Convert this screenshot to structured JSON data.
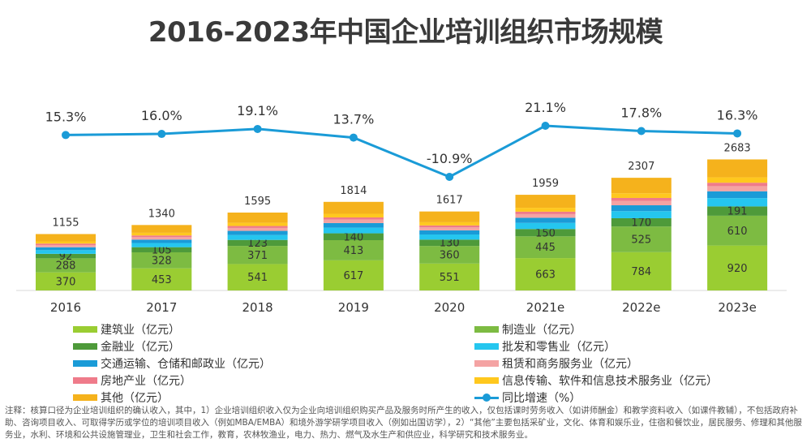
{
  "title": "2016-2023年中国企业培训组织市场规模",
  "chart_data": {
    "type": "bar",
    "stacked": true,
    "categories": [
      "2016",
      "2017",
      "2018",
      "2019",
      "2020",
      "2021e",
      "2022e",
      "2023e"
    ],
    "totals": [
      1155,
      1340,
      1595,
      1814,
      1617,
      1959,
      2307,
      2683
    ],
    "series": [
      {
        "name": "建筑业（亿元）",
        "color": "#9acd32",
        "values": [
          370,
          453,
          541,
          617,
          551,
          663,
          784,
          920
        ],
        "labeled": true
      },
      {
        "name": "制造业（亿元）",
        "color": "#7dbb42",
        "values": [
          288,
          328,
          371,
          413,
          360,
          445,
          525,
          610
        ],
        "labeled": true
      },
      {
        "name": "金融业（亿元）",
        "color": "#4e9a3a",
        "values": [
          92,
          105,
          123,
          140,
          130,
          150,
          170,
          191
        ],
        "labeled": true
      },
      {
        "name": "批发和零售业（亿元）",
        "color": "#25c6ef",
        "values": [
          75,
          85,
          100,
          115,
          105,
          125,
          145,
          170
        ]
      },
      {
        "name": "交通运输、仓储和邮政业（亿元）",
        "color": "#1a9bd7",
        "values": [
          60,
          70,
          85,
          95,
          85,
          105,
          120,
          140
        ]
      },
      {
        "name": "租赁和商务服务业（亿元）",
        "color": "#f4a3a3",
        "values": [
          45,
          50,
          60,
          70,
          60,
          75,
          90,
          105
        ]
      },
      {
        "name": "房地产业（亿元）",
        "color": "#ef7b8a",
        "values": [
          30,
          35,
          40,
          45,
          40,
          50,
          60,
          70
        ]
      },
      {
        "name": "信息传输、软件和信息技术服务业（亿元）",
        "color": "#ffc81e",
        "values": [
          45,
          55,
          65,
          75,
          66,
          80,
          95,
          110
        ]
      },
      {
        "name": "其他（亿元）",
        "color": "#f5b21c",
        "values": [
          150,
          159,
          210,
          244,
          220,
          266,
          318,
          367
        ]
      }
    ],
    "line": {
      "name": "同比增速（%）",
      "color": "#1a9bd7",
      "values": [
        15.3,
        16.0,
        19.1,
        13.7,
        -10.9,
        21.1,
        17.8,
        16.3
      ],
      "labels": [
        "15.3%",
        "16.0%",
        "19.1%",
        "13.7%",
        "-10.9%",
        "21.1%",
        "17.8%",
        "16.3%"
      ]
    }
  },
  "legend": {
    "items": [
      {
        "label": "建筑业（亿元）",
        "color": "#9acd32",
        "kind": "bar"
      },
      {
        "label": "制造业（亿元）",
        "color": "#7dbb42",
        "kind": "bar"
      },
      {
        "label": "金融业（亿元）",
        "color": "#4e9a3a",
        "kind": "bar"
      },
      {
        "label": "批发和零售业（亿元）",
        "color": "#25c6ef",
        "kind": "bar"
      },
      {
        "label": "交通运输、仓储和邮政业（亿元）",
        "color": "#1a9bd7",
        "kind": "bar"
      },
      {
        "label": "租赁和商务服务业（亿元）",
        "color": "#f4a3a3",
        "kind": "bar"
      },
      {
        "label": "房地产业（亿元）",
        "color": "#ef7b8a",
        "kind": "bar"
      },
      {
        "label": "信息传输、软件和信息技术服务业（亿元）",
        "color": "#ffc81e",
        "kind": "bar"
      },
      {
        "label": "其他（亿元）",
        "color": "#f5b21c",
        "kind": "bar"
      },
      {
        "label": "同比增速（%）",
        "color": "#1a9bd7",
        "kind": "line"
      }
    ]
  },
  "note": "注释：核算口径为企业培训组织的确认收入，其中，1）企业培训组织收入仅为企业向培训组织购买产品及服务时所产生的收入，仅包括课时劳务收入（如讲师酬金）和教学资料收入（如课件教辅），不包括政府补助、咨询项目收入、可取得学历或学位的培训项目收入（例如MBA/EMBA）和境外游学研学项目收入（例如出国访学），2）“其他”主要包括采矿业，文化、体育和娱乐业，住宿和餐饮业，居民服务、修理和其他服务业，水利、环境和公共设施管理业，卫生和社会工作，教育，农林牧渔业，电力、热力、燃气及水生产和供应业，科学研究和技术服务业。"
}
